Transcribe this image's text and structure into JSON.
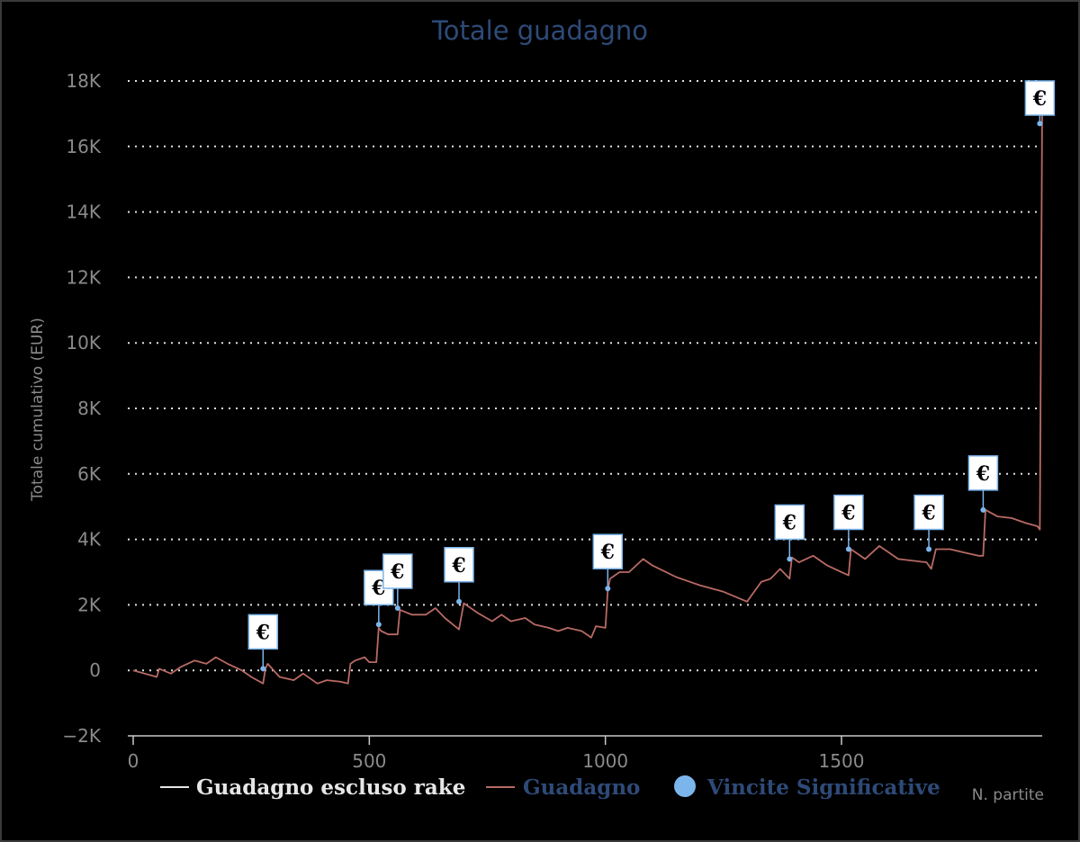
{
  "chart_data": {
    "type": "line",
    "title": "Totale guadagno",
    "ylabel": "Totale cumulativo (EUR)",
    "xlabel": "N. partite",
    "xlim": [
      0,
      1925
    ],
    "ylim": [
      -2000,
      18000
    ],
    "x_ticks": [
      0,
      500,
      1000,
      1500
    ],
    "x_tick_labels": [
      "0",
      "500",
      "1000",
      "1500"
    ],
    "y_ticks": [
      -2000,
      0,
      2000,
      4000,
      6000,
      8000,
      10000,
      12000,
      14000,
      16000,
      18000
    ],
    "y_tick_labels": [
      "−2K",
      "0",
      "2K",
      "4K",
      "6K",
      "8K",
      "10K",
      "12K",
      "14K",
      "16K",
      "18K"
    ],
    "grid": true,
    "legend_position": "bottom",
    "series": [
      {
        "name": "Guadagno",
        "color": "#b86a64",
        "x": [
          0,
          50,
          55,
          80,
          100,
          130,
          155,
          175,
          200,
          230,
          250,
          275,
          280,
          285,
          310,
          340,
          360,
          390,
          410,
          440,
          455,
          460,
          470,
          490,
          500,
          515,
          520,
          525,
          540,
          560,
          565,
          590,
          620,
          640,
          660,
          690,
          700,
          730,
          760,
          780,
          800,
          830,
          850,
          880,
          900,
          920,
          950,
          970,
          980,
          1000,
          1005,
          1010,
          1030,
          1050,
          1080,
          1100,
          1150,
          1200,
          1250,
          1300,
          1310,
          1330,
          1350,
          1370,
          1390,
          1395,
          1410,
          1440,
          1470,
          1500,
          1515,
          1520,
          1550,
          1580,
          1620,
          1680,
          1690,
          1700,
          1730,
          1760,
          1790,
          1800,
          1805,
          1830,
          1860,
          1890,
          1915,
          1920,
          1925
        ],
        "y": [
          0,
          -200,
          50,
          -100,
          100,
          300,
          200,
          400,
          200,
          0,
          -200,
          -400,
          50,
          200,
          -200,
          -300,
          -100,
          -400,
          -300,
          -350,
          -400,
          200,
          300,
          400,
          250,
          250,
          1300,
          1200,
          1100,
          1100,
          1850,
          1700,
          1700,
          1900,
          1600,
          1250,
          2050,
          1750,
          1500,
          1700,
          1500,
          1600,
          1400,
          1300,
          1200,
          1300,
          1200,
          1000,
          1350,
          1300,
          2450,
          2800,
          3000,
          3000,
          3400,
          3200,
          2850,
          2600,
          2400,
          2100,
          2300,
          2700,
          2800,
          3100,
          2800,
          3450,
          3300,
          3500,
          3200,
          3000,
          2900,
          3700,
          3400,
          3800,
          3400,
          3300,
          3100,
          3700,
          3700,
          3600,
          3500,
          3500,
          4900,
          4700,
          4650,
          4500,
          4400,
          4300,
          17200
        ]
      },
      {
        "name": "Guadagno escluso rake",
        "color": "#e6e6e6",
        "x": [],
        "y": []
      },
      {
        "name": "Vincite Significative",
        "color": "#7cb5ec",
        "x": [
          275,
          520,
          560,
          690,
          1005,
          1390,
          1515,
          1685,
          1800,
          1920
        ],
        "y": [
          50,
          1400,
          1900,
          2100,
          2500,
          3400,
          3700,
          3700,
          4900,
          16700
        ],
        "flag_label": "€"
      }
    ]
  },
  "legend": {
    "items": [
      {
        "label": "Guadagno escluso rake",
        "color": "#e6e6e6"
      },
      {
        "label": "Guadagno",
        "color": "#b86a64"
      },
      {
        "label": "Vincite Significative",
        "color": "#7cb5ec"
      }
    ]
  }
}
